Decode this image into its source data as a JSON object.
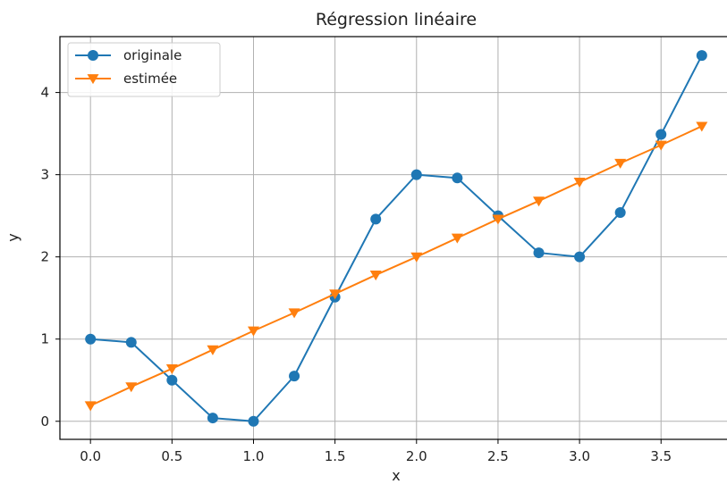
{
  "chart_data": {
    "type": "line",
    "title": "Régression linéaire",
    "xlabel": "x",
    "ylabel": "y",
    "xlim": [
      -0.1875,
      3.9375
    ],
    "ylim": [
      -0.22,
      4.68
    ],
    "x_ticks": [
      "0.0",
      "0.5",
      "1.0",
      "1.5",
      "2.0",
      "2.5",
      "3.0",
      "3.5"
    ],
    "y_ticks": [
      "0",
      "1",
      "2",
      "3",
      "4"
    ],
    "grid": true,
    "legend_position": "top-left",
    "x": [
      0.0,
      0.25,
      0.5,
      0.75,
      1.0,
      1.25,
      1.5,
      1.75,
      2.0,
      2.25,
      2.5,
      2.75,
      3.0,
      3.25,
      3.5,
      3.75
    ],
    "series": [
      {
        "name": "originale",
        "color": "#1f77b4",
        "marker": "circle",
        "values": [
          1.0,
          0.96,
          0.5,
          0.04,
          0.0,
          0.55,
          1.51,
          2.46,
          3.0,
          2.96,
          2.5,
          2.05,
          2.0,
          2.54,
          3.49,
          4.45
        ]
      },
      {
        "name": "estimée",
        "color": "#ff7f0e",
        "marker": "triangle-down",
        "values": [
          0.19,
          0.42,
          0.64,
          0.87,
          1.1,
          1.32,
          1.55,
          1.78,
          2.0,
          2.23,
          2.46,
          2.68,
          2.91,
          3.14,
          3.36,
          3.59
        ]
      }
    ]
  }
}
